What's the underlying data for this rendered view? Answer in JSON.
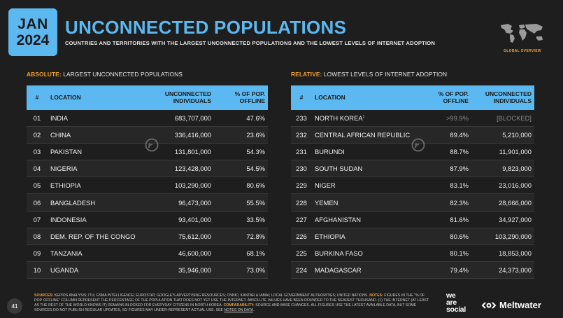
{
  "header": {
    "month": "JAN",
    "year": "2024",
    "title": "UNCONNECTED POPULATIONS",
    "subtitle": "COUNTRIES AND TERRITORIES WITH THE LARGEST UNCONNECTED POPULATIONS AND THE LOWEST LEVELS OF INTERNET ADOPTION",
    "badge": "GLOBAL OVERVIEW"
  },
  "left": {
    "label_accent": "ABSOLUTE:",
    "label_text": "LARGEST UNCONNECTED POPULATIONS",
    "columns": [
      "#",
      "LOCATION",
      "UNCONNECTED INDIVIDUALS",
      "% OF POP. OFFLINE"
    ],
    "rows": [
      {
        "rank": "01",
        "location": "INDIA",
        "individuals": "683,707,000",
        "pct": "47.6%"
      },
      {
        "rank": "02",
        "location": "CHINA",
        "individuals": "336,416,000",
        "pct": "23.6%"
      },
      {
        "rank": "03",
        "location": "PAKISTAN",
        "individuals": "131,801,000",
        "pct": "54.3%"
      },
      {
        "rank": "04",
        "location": "NIGERIA",
        "individuals": "123,428,000",
        "pct": "54.5%"
      },
      {
        "rank": "05",
        "location": "ETHIOPIA",
        "individuals": "103,290,000",
        "pct": "80.6%"
      },
      {
        "rank": "06",
        "location": "BANGLADESH",
        "individuals": "96,473,000",
        "pct": "55.5%"
      },
      {
        "rank": "07",
        "location": "INDONESIA",
        "individuals": "93,401,000",
        "pct": "33.5%"
      },
      {
        "rank": "08",
        "location": "DEM. REP. OF THE CONGO",
        "individuals": "75,612,000",
        "pct": "72.8%"
      },
      {
        "rank": "09",
        "location": "TANZANIA",
        "individuals": "46,600,000",
        "pct": "68.1%"
      },
      {
        "rank": "10",
        "location": "UGANDA",
        "individuals": "35,946,000",
        "pct": "73.0%"
      }
    ]
  },
  "right": {
    "label_accent": "RELATIVE:",
    "label_text": "LOWEST LEVELS OF INTERNET ADOPTION",
    "columns": [
      "#",
      "LOCATION",
      "% OF POP. OFFLINE",
      "UNCONNECTED INDIVIDUALS"
    ],
    "rows": [
      {
        "rank": "233",
        "location": "NORTH KOREA",
        "note": "1",
        "pct": ">99.9%",
        "individuals": "[BLOCKED]",
        "muted": true
      },
      {
        "rank": "232",
        "location": "CENTRAL AFRICAN REPUBLIC",
        "pct": "89.4%",
        "individuals": "5,210,000"
      },
      {
        "rank": "231",
        "location": "BURUNDI",
        "pct": "88.7%",
        "individuals": "11,901,000"
      },
      {
        "rank": "230",
        "location": "SOUTH SUDAN",
        "pct": "87.9%",
        "individuals": "9,823,000"
      },
      {
        "rank": "229",
        "location": "NIGER",
        "pct": "83.1%",
        "individuals": "23,016,000"
      },
      {
        "rank": "228",
        "location": "YEMEN",
        "pct": "82.3%",
        "individuals": "28,666,000"
      },
      {
        "rank": "227",
        "location": "AFGHANISTAN",
        "pct": "81.6%",
        "individuals": "34,927,000"
      },
      {
        "rank": "226",
        "location": "ETHIOPIA",
        "pct": "80.6%",
        "individuals": "103,290,000"
      },
      {
        "rank": "225",
        "location": "BURKINA FASO",
        "pct": "80.1%",
        "individuals": "18,853,000"
      },
      {
        "rank": "224",
        "location": "MADAGASCAR",
        "pct": "79.4%",
        "individuals": "24,373,000"
      }
    ]
  },
  "footer": {
    "page": "41",
    "sources_label": "SOURCES:",
    "sources_text": "KEPIOS ANALYSIS; ITU; GSMA INTELLIGENCE; EUROSTAT; GOOGLE'S ADVERTISING RESOURCES; CNNIC; KANTAR & IAMAI; LOCAL GOVERNMENT AUTHORITIES; UNITED NATIONS.",
    "notes_label": "NOTES:",
    "notes_text": "FIGURES IN THE \"% OF POP. OFFLINE\" COLUMN REPRESENT THE PERCENTAGE OF THE POPULATION THAT DOES NOT YET USE THE INTERNET. ABSOLUTE VALUES HAVE BEEN ROUNDED TO THE NEAREST THOUSAND. (1) THE INTERNET (AT LEAST AS THE REST OF THE WORLD KNOWS IT) REMAINS BLOCKED FOR EVERYDAY CITIZENS IN NORTH KOREA.",
    "comparability_label": "COMPARABILITY:",
    "comparability_text": "SOURCE AND BASE CHANGES. ALL FIGURES USE THE LATEST AVAILABLE DATA, BUT SOME SOURCES DO NOT PUBLISH REGULAR UPDATES, SO FIGURES MAY UNDER-REPRESENT ACTUAL USE. SEE",
    "notes_link": "NOTES ON DATA",
    "brand1_line1": "we",
    "brand1_line2": "are",
    "brand1_line3": "social",
    "brand2": "Meltwater"
  },
  "colors": {
    "accent_blue": "#5cb8f0",
    "accent_orange": "#f0a030",
    "background": "#1e1e1e"
  }
}
